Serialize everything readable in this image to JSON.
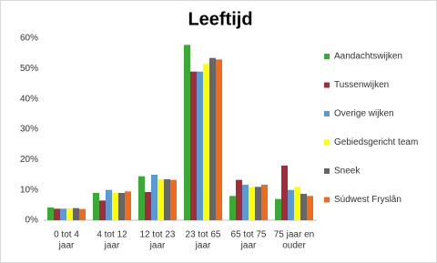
{
  "chart_data": {
    "type": "bar",
    "title": "Leeftijd",
    "categories": [
      [
        "0 tot 4",
        "jaar"
      ],
      [
        "4 tot 12",
        "jaar"
      ],
      [
        "12 tot 23",
        "jaar"
      ],
      [
        "23 tot 65",
        "jaar"
      ],
      [
        "65 tot 75",
        "jaar"
      ],
      [
        "75 jaar en",
        "ouder"
      ]
    ],
    "series": [
      {
        "name": "Aandachtswijken",
        "color": "#3aaa35",
        "values": [
          4.2,
          9,
          14.5,
          57.8,
          8,
          7
        ]
      },
      {
        "name": "Tussenwijken",
        "color": "#a52a3a",
        "values": [
          3.8,
          6.5,
          9.3,
          49,
          13.3,
          18
        ]
      },
      {
        "name": "Overige wijken",
        "color": "#5b9bd5",
        "values": [
          3.8,
          10,
          15,
          49,
          11.7,
          10
        ]
      },
      {
        "name": "Gebiedsgericht team",
        "color": "#ffff00",
        "values": [
          3.9,
          9,
          13.5,
          51.5,
          11,
          11
        ]
      },
      {
        "name": "Sneek",
        "color": "#666666",
        "values": [
          4,
          9,
          13.5,
          53.5,
          11,
          8.7
        ]
      },
      {
        "name": "Súdwest Fryslân",
        "color": "#f26b1d",
        "values": [
          3.7,
          9.5,
          13.3,
          53,
          11.7,
          8
        ]
      }
    ],
    "ylim": [
      0,
      60
    ],
    "yticks": [
      {
        "value": 0,
        "label": "0%"
      },
      {
        "value": 10,
        "label": "10%"
      },
      {
        "value": 20,
        "label": "20%"
      },
      {
        "value": 30,
        "label": "30%"
      },
      {
        "value": 40,
        "label": "40%"
      },
      {
        "value": 50,
        "label": "50%"
      },
      {
        "value": 60,
        "label": "60%"
      }
    ],
    "legend": "right"
  }
}
